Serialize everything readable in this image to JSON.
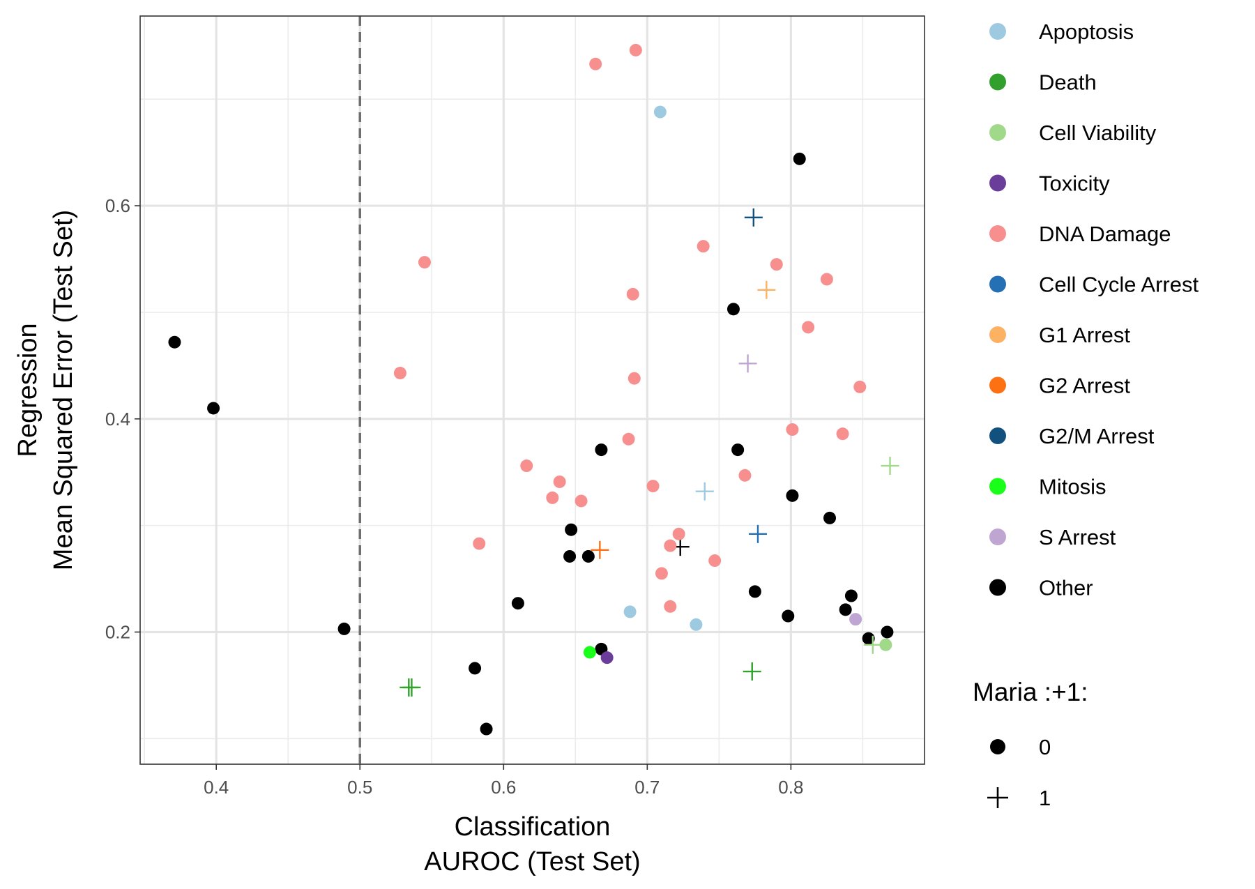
{
  "chart_data": {
    "type": "scatter",
    "xlabel": [
      "Classification",
      "AUROC (Test Set)"
    ],
    "ylabel": [
      "Regression",
      "Mean Squared Error (Test Set)"
    ],
    "xlim": [
      0.347,
      0.893
    ],
    "ylim": [
      0.076,
      0.778
    ],
    "xticks": [
      0.4,
      0.5,
      0.6,
      0.7,
      0.8
    ],
    "xtick_labels": [
      "0.4",
      "0.5",
      "0.6",
      "0.7",
      "0.8"
    ],
    "yticks": [
      0.2,
      0.4,
      0.6
    ],
    "ytick_labels": [
      "0.2",
      "0.4",
      "0.6"
    ],
    "grid": true,
    "reference_line": {
      "x": 0.5,
      "style": "dashed"
    },
    "legend_placement": "right",
    "color_legend": [
      {
        "label": "Apoptosis",
        "color": "#9ecae1"
      },
      {
        "label": "Death",
        "color": "#31a02c"
      },
      {
        "label": "Cell Viability",
        "color": "#a1d98a"
      },
      {
        "label": "Toxicity",
        "color": "#6a3d9a"
      },
      {
        "label": "DNA Damage",
        "color": "#f78f8f"
      },
      {
        "label": "Cell Cycle Arrest",
        "color": "#2570b5"
      },
      {
        "label": "G1 Arrest",
        "color": "#fdb263"
      },
      {
        "label": "G2 Arrest",
        "color": "#fd7112"
      },
      {
        "label": "G2/M Arrest",
        "color": "#12507d"
      },
      {
        "label": "Mitosis",
        "color": "#1aff1a"
      },
      {
        "label": "S Arrest",
        "color": "#bfa5d2"
      },
      {
        "label": "Other",
        "color": "#000000"
      }
    ],
    "shape_legend": {
      "title": "Maria :+1:",
      "items": [
        {
          "label": "0",
          "shape": "circle"
        },
        {
          "label": "1",
          "shape": "plus"
        }
      ]
    },
    "points": [
      {
        "category": "Other",
        "x": 0.371,
        "y": 0.472,
        "maria": 0
      },
      {
        "category": "Other",
        "x": 0.398,
        "y": 0.41,
        "maria": 0
      },
      {
        "category": "Other",
        "x": 0.489,
        "y": 0.203,
        "maria": 0
      },
      {
        "category": "Other",
        "x": 0.58,
        "y": 0.166,
        "maria": 0
      },
      {
        "category": "Other",
        "x": 0.588,
        "y": 0.109,
        "maria": 0
      },
      {
        "category": "Other",
        "x": 0.61,
        "y": 0.227,
        "maria": 0
      },
      {
        "category": "Other",
        "x": 0.646,
        "y": 0.271,
        "maria": 0
      },
      {
        "category": "Other",
        "x": 0.647,
        "y": 0.296,
        "maria": 0
      },
      {
        "category": "Other",
        "x": 0.659,
        "y": 0.271,
        "maria": 0
      },
      {
        "category": "Other",
        "x": 0.668,
        "y": 0.371,
        "maria": 0
      },
      {
        "category": "Other",
        "x": 0.668,
        "y": 0.184,
        "maria": 0
      },
      {
        "category": "Other",
        "x": 0.76,
        "y": 0.503,
        "maria": 0
      },
      {
        "category": "Other",
        "x": 0.763,
        "y": 0.371,
        "maria": 0
      },
      {
        "category": "Other",
        "x": 0.775,
        "y": 0.238,
        "maria": 0
      },
      {
        "category": "Other",
        "x": 0.798,
        "y": 0.215,
        "maria": 0
      },
      {
        "category": "Other",
        "x": 0.801,
        "y": 0.328,
        "maria": 0
      },
      {
        "category": "Other",
        "x": 0.806,
        "y": 0.644,
        "maria": 0
      },
      {
        "category": "Other",
        "x": 0.827,
        "y": 0.307,
        "maria": 0
      },
      {
        "category": "Other",
        "x": 0.838,
        "y": 0.221,
        "maria": 0
      },
      {
        "category": "Other",
        "x": 0.842,
        "y": 0.234,
        "maria": 0
      },
      {
        "category": "Other",
        "x": 0.854,
        "y": 0.194,
        "maria": 0
      },
      {
        "category": "Other",
        "x": 0.867,
        "y": 0.2,
        "maria": 0
      },
      {
        "category": "Other",
        "x": 0.723,
        "y": 0.28,
        "maria": 1
      },
      {
        "category": "DNA Damage",
        "x": 0.528,
        "y": 0.443,
        "maria": 0
      },
      {
        "category": "DNA Damage",
        "x": 0.545,
        "y": 0.547,
        "maria": 0
      },
      {
        "category": "DNA Damage",
        "x": 0.583,
        "y": 0.283,
        "maria": 0
      },
      {
        "category": "DNA Damage",
        "x": 0.616,
        "y": 0.356,
        "maria": 0
      },
      {
        "category": "DNA Damage",
        "x": 0.634,
        "y": 0.326,
        "maria": 0
      },
      {
        "category": "DNA Damage",
        "x": 0.639,
        "y": 0.341,
        "maria": 0
      },
      {
        "category": "DNA Damage",
        "x": 0.654,
        "y": 0.323,
        "maria": 0
      },
      {
        "category": "DNA Damage",
        "x": 0.664,
        "y": 0.733,
        "maria": 0
      },
      {
        "category": "DNA Damage",
        "x": 0.687,
        "y": 0.381,
        "maria": 0
      },
      {
        "category": "DNA Damage",
        "x": 0.69,
        "y": 0.517,
        "maria": 0
      },
      {
        "category": "DNA Damage",
        "x": 0.691,
        "y": 0.438,
        "maria": 0
      },
      {
        "category": "DNA Damage",
        "x": 0.692,
        "y": 0.746,
        "maria": 0
      },
      {
        "category": "DNA Damage",
        "x": 0.704,
        "y": 0.337,
        "maria": 0
      },
      {
        "category": "DNA Damage",
        "x": 0.71,
        "y": 0.255,
        "maria": 0
      },
      {
        "category": "DNA Damage",
        "x": 0.716,
        "y": 0.281,
        "maria": 0
      },
      {
        "category": "DNA Damage",
        "x": 0.716,
        "y": 0.224,
        "maria": 0
      },
      {
        "category": "DNA Damage",
        "x": 0.722,
        "y": 0.292,
        "maria": 0
      },
      {
        "category": "DNA Damage",
        "x": 0.739,
        "y": 0.562,
        "maria": 0
      },
      {
        "category": "DNA Damage",
        "x": 0.747,
        "y": 0.267,
        "maria": 0
      },
      {
        "category": "DNA Damage",
        "x": 0.768,
        "y": 0.347,
        "maria": 0
      },
      {
        "category": "DNA Damage",
        "x": 0.79,
        "y": 0.545,
        "maria": 0
      },
      {
        "category": "DNA Damage",
        "x": 0.801,
        "y": 0.39,
        "maria": 0
      },
      {
        "category": "DNA Damage",
        "x": 0.812,
        "y": 0.486,
        "maria": 0
      },
      {
        "category": "DNA Damage",
        "x": 0.825,
        "y": 0.531,
        "maria": 0
      },
      {
        "category": "DNA Damage",
        "x": 0.836,
        "y": 0.386,
        "maria": 0
      },
      {
        "category": "DNA Damage",
        "x": 0.848,
        "y": 0.43,
        "maria": 0
      },
      {
        "category": "Apoptosis",
        "x": 0.688,
        "y": 0.219,
        "maria": 0
      },
      {
        "category": "Apoptosis",
        "x": 0.709,
        "y": 0.688,
        "maria": 0
      },
      {
        "category": "Apoptosis",
        "x": 0.734,
        "y": 0.207,
        "maria": 0
      },
      {
        "category": "Apoptosis",
        "x": 0.74,
        "y": 0.332,
        "maria": 1
      },
      {
        "category": "Death",
        "x": 0.534,
        "y": 0.148,
        "maria": 1
      },
      {
        "category": "Death",
        "x": 0.536,
        "y": 0.148,
        "maria": 1
      },
      {
        "category": "Death",
        "x": 0.773,
        "y": 0.163,
        "maria": 1
      },
      {
        "category": "Cell Viability",
        "x": 0.857,
        "y": 0.188,
        "maria": 1
      },
      {
        "category": "Cell Viability",
        "x": 0.866,
        "y": 0.188,
        "maria": 0
      },
      {
        "category": "Cell Viability",
        "x": 0.869,
        "y": 0.356,
        "maria": 1
      },
      {
        "category": "Toxicity",
        "x": 0.672,
        "y": 0.176,
        "maria": 0
      },
      {
        "category": "Mitosis",
        "x": 0.66,
        "y": 0.181,
        "maria": 0
      },
      {
        "category": "S Arrest",
        "x": 0.845,
        "y": 0.212,
        "maria": 0
      },
      {
        "category": "S Arrest",
        "x": 0.77,
        "y": 0.452,
        "maria": 1
      },
      {
        "category": "G2 Arrest",
        "x": 0.667,
        "y": 0.277,
        "maria": 1
      },
      {
        "category": "G1 Arrest",
        "x": 0.783,
        "y": 0.521,
        "maria": 1
      },
      {
        "category": "Cell Cycle Arrest",
        "x": 0.777,
        "y": 0.292,
        "maria": 1
      },
      {
        "category": "G2/M Arrest",
        "x": 0.774,
        "y": 0.589,
        "maria": 1
      }
    ]
  }
}
